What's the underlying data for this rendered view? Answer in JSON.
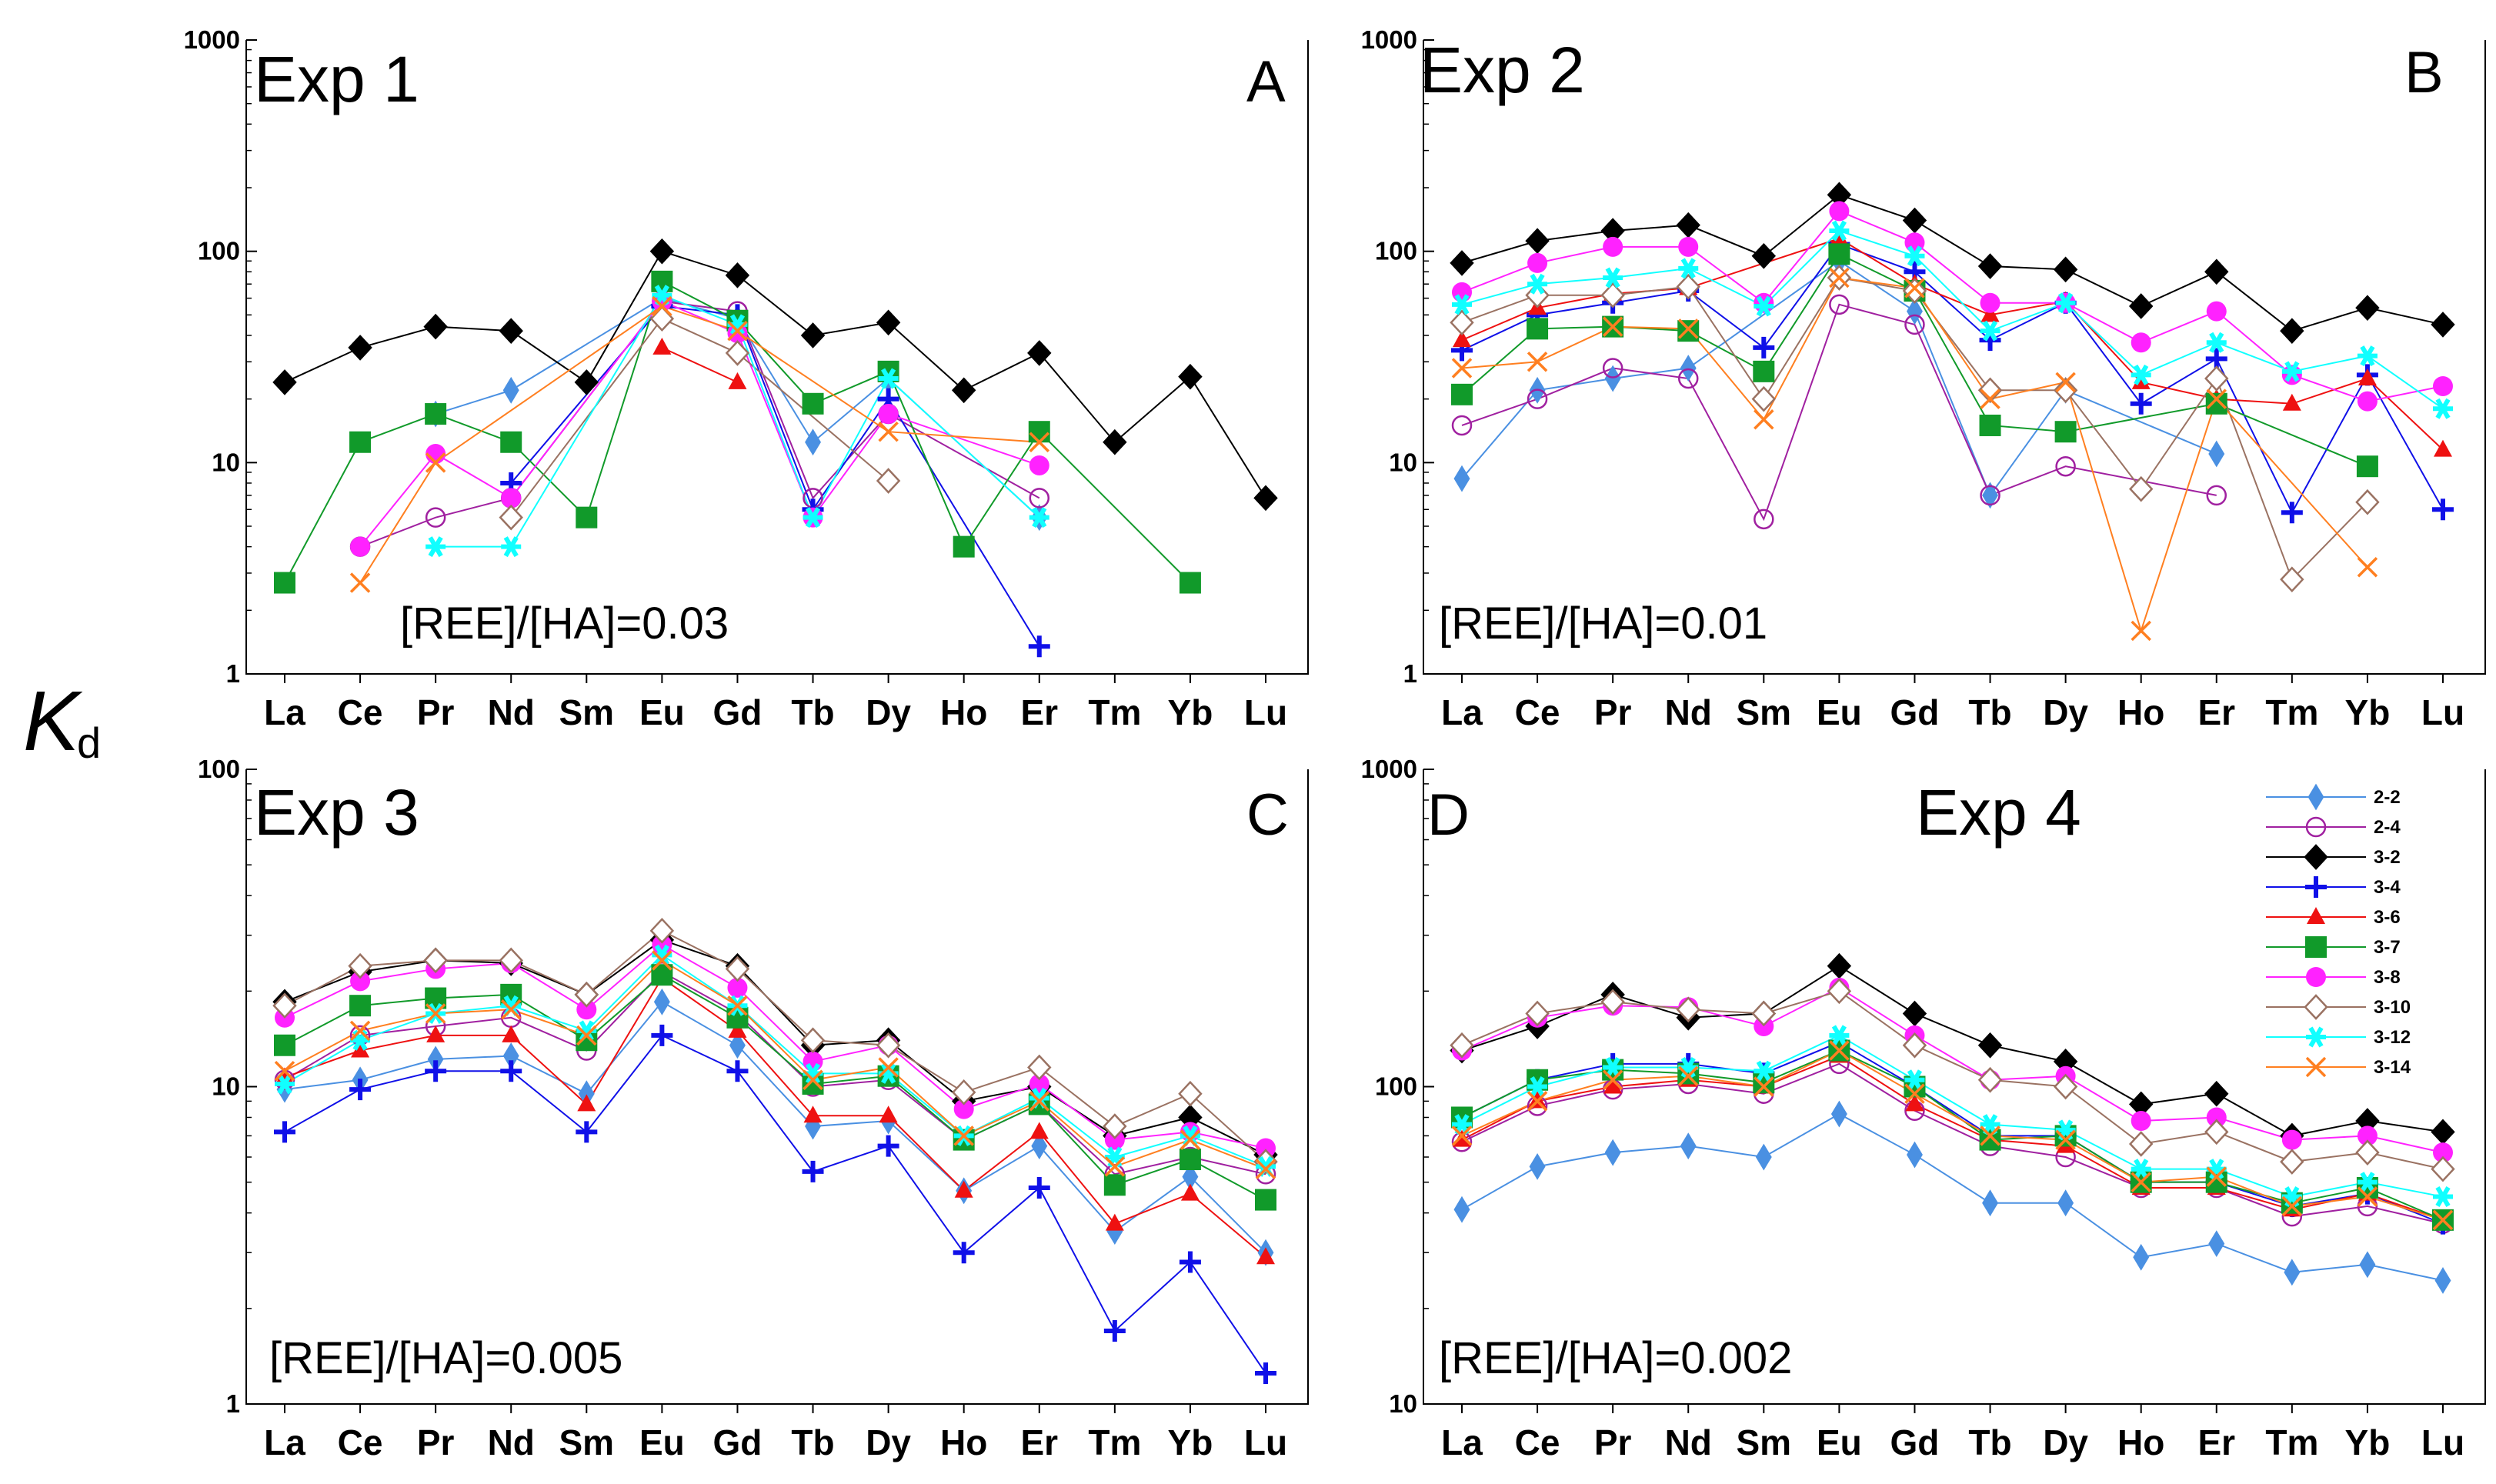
{
  "figure": {
    "y_axis_label": "K",
    "y_axis_label_subscript": "d"
  },
  "legend": [
    {
      "name": "2-2",
      "color": "#4a90e2",
      "marker": "diamond-filled"
    },
    {
      "name": "2-4",
      "color": "#a020a0",
      "marker": "circle-open"
    },
    {
      "name": "3-2",
      "color": "#000000",
      "marker": "diamond-filled"
    },
    {
      "name": "3-4",
      "color": "#1010e8",
      "marker": "plus"
    },
    {
      "name": "3-6",
      "color": "#ee1111",
      "marker": "triangle-filled"
    },
    {
      "name": "3-7",
      "color": "#119a2a",
      "marker": "square-filled"
    },
    {
      "name": "3-8",
      "color": "#ff22ff",
      "marker": "circle-filled"
    },
    {
      "name": "3-10",
      "color": "#9a7262",
      "marker": "diamond-open"
    },
    {
      "name": "3-12",
      "color": "#11ffff",
      "marker": "star"
    },
    {
      "name": "3-14",
      "color": "#ff7f20",
      "marker": "cross"
    }
  ],
  "chart_data": [
    {
      "type": "line",
      "id": "A",
      "title": "Exp 1",
      "letter": "A",
      "annotation": "[REE]/[HA]=0.03",
      "yscale": "log",
      "ylim": [
        1,
        1000
      ],
      "yticks": [
        "1",
        "10",
        "100",
        "1000"
      ],
      "categories": [
        "La",
        "Ce",
        "Pr",
        "Nd",
        "Sm",
        "Eu",
        "Gd",
        "Tb",
        "Dy",
        "Ho",
        "Er",
        "Tm",
        "Yb",
        "Lu"
      ],
      "series": [
        {
          "name": "2-2",
          "values": [
            null,
            null,
            17,
            22,
            null,
            60,
            48,
            12.5,
            25,
            null,
            5.5,
            null,
            null,
            null
          ]
        },
        {
          "name": "2-4",
          "values": [
            null,
            4,
            5.5,
            6.8,
            null,
            58,
            52,
            6.8,
            17,
            null,
            6.8,
            null,
            null,
            null
          ]
        },
        {
          "name": "3-2",
          "values": [
            24,
            35,
            44,
            42,
            24,
            100,
            77,
            40,
            46,
            22,
            33,
            12.5,
            25.5,
            6.8
          ]
        },
        {
          "name": "3-4",
          "values": [
            null,
            null,
            null,
            8,
            null,
            55,
            50,
            6,
            20,
            null,
            1.35,
            null,
            null,
            null
          ]
        },
        {
          "name": "3-6",
          "values": [
            null,
            null,
            null,
            null,
            null,
            35,
            24,
            null,
            null,
            null,
            null,
            null,
            null,
            null
          ]
        },
        {
          "name": "3-7",
          "values": [
            2.7,
            12.5,
            17,
            12.5,
            5.5,
            72,
            47,
            19,
            27,
            4,
            14,
            null,
            2.7,
            null
          ]
        },
        {
          "name": "3-8",
          "values": [
            null,
            4,
            11,
            6.8,
            null,
            58,
            41,
            5.5,
            17,
            null,
            9.7,
            null,
            null,
            null
          ]
        },
        {
          "name": "3-10",
          "values": [
            null,
            null,
            null,
            5.5,
            null,
            48,
            33,
            null,
            8.2,
            null,
            null,
            null,
            null,
            null
          ]
        },
        {
          "name": "3-12",
          "values": [
            null,
            null,
            4,
            4,
            null,
            62,
            45,
            5.5,
            25,
            null,
            5.5,
            null,
            null,
            null
          ]
        },
        {
          "name": "3-14",
          "values": [
            null,
            2.7,
            10,
            null,
            null,
            55,
            42,
            null,
            14,
            null,
            12.5,
            null,
            null,
            null
          ]
        }
      ]
    },
    {
      "type": "line",
      "id": "B",
      "title": "Exp 2",
      "letter": "B",
      "annotation": "[REE]/[HA]=0.01",
      "yscale": "log",
      "ylim": [
        1,
        1000
      ],
      "yticks": [
        "1",
        "10",
        "100",
        "1000"
      ],
      "categories": [
        "La",
        "Ce",
        "Pr",
        "Nd",
        "Sm",
        "Eu",
        "Gd",
        "Tb",
        "Dy",
        "Ho",
        "Er",
        "Tm",
        "Yb",
        "Lu"
      ],
      "series": [
        {
          "name": "2-2",
          "values": [
            8.4,
            22,
            25,
            28,
            null,
            90,
            52,
            7,
            22,
            null,
            11,
            null,
            null,
            null
          ]
        },
        {
          "name": "2-4",
          "values": [
            15,
            20,
            28,
            25,
            5.4,
            56,
            45,
            7,
            9.6,
            null,
            7,
            null,
            null,
            null
          ]
        },
        {
          "name": "3-2",
          "values": [
            88,
            112,
            125,
            133,
            95,
            185,
            140,
            85,
            82,
            55,
            80,
            42,
            54,
            45
          ]
        },
        {
          "name": "3-4",
          "values": [
            34,
            50,
            57,
            65,
            35,
            108,
            80,
            38,
            57,
            19,
            31,
            5.8,
            26,
            6
          ]
        },
        {
          "name": "3-6",
          "values": [
            38,
            54,
            63,
            67,
            null,
            115,
            70,
            50,
            58,
            24,
            20,
            19,
            25,
            11.5
          ]
        },
        {
          "name": "3-7",
          "values": [
            21,
            43,
            44,
            42,
            27,
            97,
            65,
            15,
            14,
            null,
            19,
            null,
            9.6,
            null
          ]
        },
        {
          "name": "3-8",
          "values": [
            64,
            88,
            105,
            105,
            57,
            155,
            110,
            57,
            57,
            37,
            52,
            26,
            19.5,
            23
          ]
        },
        {
          "name": "3-10",
          "values": [
            46,
            62,
            62,
            68,
            20,
            75,
            65,
            22,
            22,
            7.5,
            25,
            2.8,
            6.5,
            null
          ]
        },
        {
          "name": "3-12",
          "values": [
            56,
            70,
            75,
            83,
            55,
            125,
            95,
            42,
            57,
            26,
            37,
            27,
            32,
            18
          ]
        },
        {
          "name": "3-14",
          "values": [
            28,
            30,
            44,
            43,
            16,
            75,
            67,
            20,
            24,
            1.6,
            20,
            null,
            3.2,
            null
          ]
        }
      ]
    },
    {
      "type": "line",
      "id": "C",
      "title": "Exp 3",
      "letter": "C",
      "annotation": "[REE]/[HA]=0.005",
      "yscale": "log",
      "ylim": [
        1,
        100
      ],
      "yticks": [
        "1",
        "10",
        "100"
      ],
      "categories": [
        "La",
        "Ce",
        "Pr",
        "Nd",
        "Sm",
        "Eu",
        "Gd",
        "Tb",
        "Dy",
        "Ho",
        "Er",
        "Tm",
        "Yb",
        "Lu"
      ],
      "series": [
        {
          "name": "2-2",
          "values": [
            9.8,
            10.5,
            12.2,
            12.5,
            9.5,
            18.5,
            13.5,
            7.5,
            7.8,
            4.7,
            6.5,
            3.5,
            5.2,
            3.0
          ]
        },
        {
          "name": "2-4",
          "values": [
            10.5,
            14.5,
            15.5,
            16.5,
            13,
            23,
            17,
            10,
            10.5,
            6.8,
            8.8,
            5.3,
            6,
            5.3
          ]
        },
        {
          "name": "3-2",
          "values": [
            18.5,
            23,
            25,
            24.5,
            19.5,
            29,
            24,
            13.5,
            14,
            9,
            10,
            7,
            8,
            6.1
          ]
        },
        {
          "name": "3-4",
          "values": [
            7.2,
            9.8,
            11.2,
            11.2,
            7.2,
            14.5,
            11.2,
            5.4,
            6.5,
            3,
            4.8,
            1.7,
            2.8,
            1.25
          ]
        },
        {
          "name": "3-6",
          "values": [
            10.7,
            13,
            14.5,
            14.5,
            8.8,
            22,
            15,
            8.1,
            8.1,
            4.7,
            7.2,
            3.7,
            4.6,
            2.9
          ]
        },
        {
          "name": "3-7",
          "values": [
            13.5,
            18,
            19,
            19.5,
            14,
            22.5,
            16.5,
            10.2,
            10.8,
            6.8,
            8.8,
            4.9,
            5.9,
            4.4
          ]
        },
        {
          "name": "3-8",
          "values": [
            16.5,
            21.5,
            23.5,
            24.5,
            17.5,
            28,
            20.5,
            12,
            13.5,
            8.5,
            10.2,
            6.8,
            7.2,
            6.4
          ]
        },
        {
          "name": "3-10",
          "values": [
            18,
            24,
            25,
            25,
            19.5,
            31,
            23.5,
            14,
            13.5,
            9.6,
            11.5,
            7.5,
            9.5,
            5.8
          ]
        },
        {
          "name": "3-12",
          "values": [
            10.2,
            14,
            17,
            18,
            15,
            26,
            18,
            11,
            11,
            7,
            9.2,
            6,
            7,
            5.6
          ]
        },
        {
          "name": "3-14",
          "values": [
            11.2,
            15,
            17,
            17.5,
            14.5,
            25,
            18,
            10.5,
            11.5,
            7,
            9,
            5.6,
            6.8,
            5.5
          ]
        }
      ]
    },
    {
      "type": "line",
      "id": "D",
      "title": "Exp 4",
      "letter": "D",
      "annotation": "[REE]/[HA]=0.002",
      "yscale": "log",
      "ylim": [
        10,
        1000
      ],
      "yticks": [
        "10",
        "100",
        "1000"
      ],
      "categories": [
        "La",
        "Ce",
        "Pr",
        "Nd",
        "Sm",
        "Eu",
        "Gd",
        "Tb",
        "Dy",
        "Ho",
        "Er",
        "Tm",
        "Yb",
        "Lu"
      ],
      "series": [
        {
          "name": "2-2",
          "values": [
            41,
            56,
            62,
            65,
            60,
            82,
            61,
            43,
            43,
            29,
            32,
            26,
            27.5,
            24.5
          ]
        },
        {
          "name": "2-4",
          "values": [
            67,
            87,
            98,
            102,
            95,
            118,
            84,
            65,
            60,
            48,
            48,
            39,
            42,
            37
          ]
        },
        {
          "name": "3-2",
          "values": [
            130,
            155,
            195,
            165,
            170,
            240,
            170,
            135,
            120,
            88,
            95,
            70,
            78,
            72
          ]
        },
        {
          "name": "3-4",
          "values": [
            80,
            105,
            118,
            118,
            110,
            138,
            100,
            70,
            70,
            50,
            50,
            42,
            46,
            37
          ]
        },
        {
          "name": "3-6",
          "values": [
            68,
            90,
            100,
            105,
            100,
            125,
            88,
            68,
            65,
            48,
            48,
            41,
            46,
            38
          ]
        },
        {
          "name": "3-7",
          "values": [
            80,
            105,
            113,
            110,
            103,
            130,
            100,
            68,
            70,
            50,
            50,
            43,
            48,
            38
          ]
        },
        {
          "name": "3-8",
          "values": [
            130,
            165,
            180,
            178,
            155,
            205,
            145,
            105,
            108,
            78,
            80,
            68,
            70,
            62
          ]
        },
        {
          "name": "3-10",
          "values": [
            135,
            170,
            185,
            175,
            170,
            200,
            135,
            105,
            100,
            66,
            72,
            58,
            62,
            55
          ]
        },
        {
          "name": "3-12",
          "values": [
            76,
            100,
            115,
            115,
            112,
            145,
            105,
            76,
            73,
            55,
            55,
            45,
            50,
            45
          ]
        },
        {
          "name": "3-14",
          "values": [
            70,
            90,
            105,
            108,
            100,
            130,
            95,
            70,
            68,
            50,
            52,
            42,
            45,
            38
          ]
        }
      ]
    }
  ]
}
